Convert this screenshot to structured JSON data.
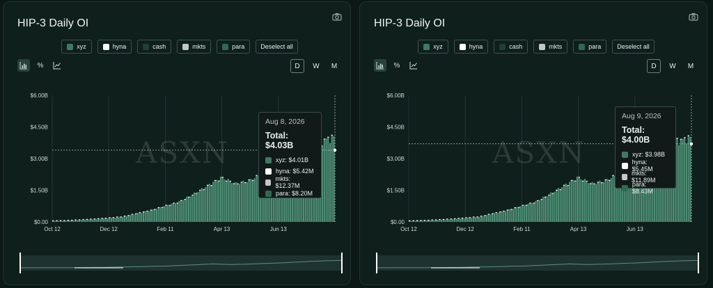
{
  "colors": {
    "xyz": "#3f7a62",
    "hyna": "#ffffff",
    "cash": "#1f3f35",
    "mkts": "#c2c7c5",
    "para": "#2e6a52",
    "bar": "#4f9077"
  },
  "icons": {
    "camera": "camera-icon",
    "bar_mode": "bar-chart-icon",
    "percent_mode": "percent-icon",
    "line_mode": "line-chart-icon"
  },
  "panels": [
    {
      "title": "HIP-3 Daily OI",
      "legend": [
        {
          "label": "xyz",
          "key": "xyz"
        },
        {
          "label": "hyna",
          "key": "hyna"
        },
        {
          "label": "cash",
          "key": "cash"
        },
        {
          "label": "mkts",
          "key": "mkts"
        },
        {
          "label": "para",
          "key": "para"
        }
      ],
      "deselect_label": "Deselect all",
      "modes": [
        {
          "label": "%"
        }
      ],
      "periods": [
        "D",
        "W",
        "M"
      ],
      "active_period": "D",
      "watermark": "ASXN",
      "tooltip": {
        "date": "Aug 8, 2026",
        "total": "Total: $4.03B",
        "rows": [
          {
            "text": "xyz: $4.01B",
            "key": "xyz"
          },
          {
            "text": "hyna: $5.42M",
            "key": "hyna"
          },
          {
            "text": "mkts: $12.37M",
            "key": "mkts"
          },
          {
            "text": "para: $8.20M",
            "key": "para"
          }
        ]
      }
    },
    {
      "title": "HIP-3 Daily OI",
      "legend": [
        {
          "label": "xyz",
          "key": "xyz"
        },
        {
          "label": "hyna",
          "key": "hyna"
        },
        {
          "label": "cash",
          "key": "cash"
        },
        {
          "label": "mkts",
          "key": "mkts"
        },
        {
          "label": "para",
          "key": "para"
        }
      ],
      "deselect_label": "Deselect all",
      "modes": [
        {
          "label": "%"
        }
      ],
      "periods": [
        "D",
        "W",
        "M"
      ],
      "active_period": "D",
      "watermark": "ASXN",
      "tooltip": {
        "date": "Aug 9, 2026",
        "total": "Total: $4.00B",
        "rows": [
          {
            "text": "xyz: $3.98B",
            "key": "xyz"
          },
          {
            "text": "hyna: $5.45M",
            "key": "hyna"
          },
          {
            "text": "mkts: $11.89M",
            "key": "mkts"
          },
          {
            "text": "para: $8.43M",
            "key": "para"
          }
        ]
      }
    }
  ],
  "chart_data": [
    {
      "type": "bar",
      "title": "HIP-3 Daily OI",
      "y_unit": "USD billions",
      "ylim": [
        0,
        6.0
      ],
      "y_ticks": [
        0,
        1.5,
        3.0,
        4.5,
        6.0
      ],
      "y_tick_labels": [
        "$0.00",
        "$1.50B",
        "$3.00B",
        "$4.50B",
        "$6.00B"
      ],
      "x_tick_labels": [
        "Oct 12",
        "Dec 12",
        "Feb 11",
        "Apr 13",
        "Jun 13"
      ],
      "x": [
        "Oct 12",
        "Oct 27",
        "Nov 11",
        "Nov 26",
        "Dec 12",
        "Dec 27",
        "Jan 11",
        "Jan 26",
        "Feb 11",
        "Feb 26",
        "Mar 13",
        "Mar 28",
        "Apr 13",
        "Apr 28",
        "May 13",
        "May 28",
        "Jun 13",
        "Jun 28",
        "Jul 13",
        "Jul 28",
        "Aug 8"
      ],
      "series": [
        {
          "name": "xyz",
          "values": [
            0.04,
            0.06,
            0.09,
            0.13,
            0.18,
            0.24,
            0.4,
            0.55,
            0.75,
            0.95,
            1.3,
            1.7,
            2.1,
            1.8,
            1.95,
            2.3,
            2.6,
            3.0,
            3.45,
            3.8,
            4.01
          ]
        }
      ],
      "grid": "vertical",
      "hover_value": 3.4
    },
    {
      "type": "bar",
      "title": "HIP-3 Daily OI",
      "y_unit": "USD billions",
      "ylim": [
        0,
        6.0
      ],
      "y_ticks": [
        0,
        1.5,
        3.0,
        4.5,
        6.0
      ],
      "y_tick_labels": [
        "$0.00",
        "$1.50B",
        "$3.00B",
        "$4.50B",
        "$6.00B"
      ],
      "x_tick_labels": [
        "Oct 12",
        "Dec 12",
        "Feb 11",
        "Apr 13",
        "Jun 13"
      ],
      "x": [
        "Oct 12",
        "Oct 27",
        "Nov 11",
        "Nov 26",
        "Dec 12",
        "Dec 27",
        "Jan 11",
        "Jan 26",
        "Feb 11",
        "Feb 26",
        "Mar 13",
        "Mar 28",
        "Apr 13",
        "Apr 28",
        "May 13",
        "May 28",
        "Jun 13",
        "Jun 28",
        "Jul 13",
        "Jul 28",
        "Aug 9"
      ],
      "series": [
        {
          "name": "xyz",
          "values": [
            0.04,
            0.06,
            0.09,
            0.13,
            0.18,
            0.24,
            0.4,
            0.55,
            0.75,
            0.95,
            1.3,
            1.7,
            2.1,
            1.8,
            1.95,
            2.3,
            2.6,
            3.0,
            3.45,
            3.8,
            3.98
          ]
        }
      ],
      "grid": "vertical",
      "hover_value": 3.7
    }
  ]
}
